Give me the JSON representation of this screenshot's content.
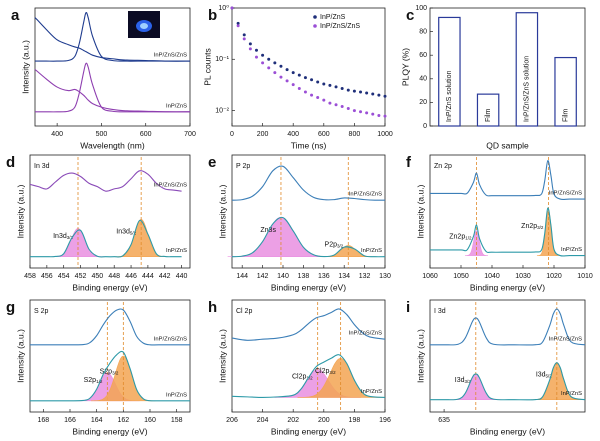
{
  "chart_data": [
    {
      "type": "line",
      "label": "a",
      "xlabel": "Wavelength (nm)",
      "ylabel": "Intensity (a.u.)",
      "xlim": [
        350,
        700
      ],
      "xticks": [
        400,
        500,
        600,
        700
      ],
      "ylim": [
        0,
        10
      ],
      "x": [
        350,
        375,
        400,
        425,
        440,
        450,
        460,
        465,
        470,
        480,
        500,
        525,
        550,
        600,
        650,
        700
      ],
      "series": [
        {
          "name": "InP/ZnS/ZnS",
          "color": "#1f3c8f",
          "absorption": [
            9.2,
            8.2,
            7.3,
            6.9,
            6.7,
            6.6,
            6.4,
            6.3,
            6.2,
            6.0,
            5.8,
            5.7,
            5.6,
            5.55,
            5.5,
            5.5
          ],
          "emission": [
            5.5,
            5.5,
            5.5,
            5.55,
            5.9,
            7.0,
            8.8,
            9.6,
            9.2,
            7.6,
            5.9,
            5.55,
            5.5,
            5.5,
            5.5,
            5.5
          ]
        },
        {
          "name": "InP/ZnS",
          "color": "#8e3fb0",
          "absorption": [
            4.8,
            4.0,
            3.3,
            3.0,
            3.1,
            2.9,
            2.6,
            2.4,
            2.2,
            1.9,
            1.6,
            1.4,
            1.3,
            1.25,
            1.2,
            1.2
          ],
          "emission": [
            1.2,
            1.2,
            1.2,
            1.25,
            1.6,
            2.8,
            4.6,
            5.3,
            5.0,
            3.5,
            1.6,
            1.25,
            1.2,
            1.2,
            1.2,
            1.2
          ]
        }
      ]
    },
    {
      "type": "scatter",
      "label": "b",
      "xlabel": "Time (ns)",
      "ylabel": "PL counts",
      "log": true,
      "xlim": [
        0,
        1000
      ],
      "xticks": [
        0,
        200,
        400,
        600,
        800,
        1000
      ],
      "ylim": [
        0.005,
        1
      ],
      "yticks": [
        {
          "value": 0.01,
          "label": "10⁻²"
        },
        {
          "value": 0.1,
          "label": "10⁻¹"
        },
        {
          "value": 1,
          "label": "10⁰"
        }
      ],
      "legend": "upper right",
      "x": [
        0,
        40,
        80,
        120,
        160,
        200,
        240,
        280,
        320,
        360,
        400,
        440,
        480,
        520,
        560,
        600,
        640,
        680,
        720,
        760,
        800,
        840,
        880,
        920,
        960,
        1000
      ],
      "series": [
        {
          "name": "InP/ZnS",
          "color": "#1f2f7a",
          "values": [
            1.0,
            0.5,
            0.3,
            0.2,
            0.15,
            0.12,
            0.1,
            0.085,
            0.073,
            0.063,
            0.055,
            0.049,
            0.044,
            0.04,
            0.036,
            0.033,
            0.031,
            0.029,
            0.027,
            0.025,
            0.024,
            0.023,
            0.022,
            0.021,
            0.02,
            0.019
          ]
        },
        {
          "name": "InP/ZnS/ZnS",
          "color": "#9b4fd6",
          "values": [
            1.0,
            0.45,
            0.25,
            0.16,
            0.11,
            0.085,
            0.068,
            0.055,
            0.045,
            0.038,
            0.032,
            0.027,
            0.023,
            0.02,
            0.018,
            0.016,
            0.014,
            0.013,
            0.012,
            0.011,
            0.01,
            0.0095,
            0.009,
            0.0085,
            0.008,
            0.0078
          ]
        }
      ]
    },
    {
      "type": "bar",
      "label": "c",
      "xlabel": "QD sample",
      "ylabel": "PLQY (%)",
      "categories": [
        "InP/ZnS solution",
        "Film",
        "InP/ZnS/ZnS solution",
        "Film"
      ],
      "values": [
        92,
        27,
        96,
        58
      ],
      "color": "#2a3a9a",
      "ylim": [
        0,
        100
      ],
      "yticks": [
        0,
        20,
        40,
        60,
        80,
        100
      ]
    },
    {
      "type": "spectrum",
      "label": "d",
      "subtitle": "In 3d",
      "xlabel": "Binding energy (eV)",
      "ylabel": "Intensity (a.u.)",
      "xlim": [
        458,
        439
      ],
      "xticks": [
        458,
        456,
        454,
        452,
        450,
        448,
        446,
        444,
        442,
        440
      ],
      "ylim": [
        0,
        10
      ],
      "x": [
        458,
        457,
        456,
        455,
        454,
        453,
        452,
        451,
        450,
        449,
        448,
        447,
        446,
        445,
        444,
        443,
        442,
        441,
        440
      ],
      "series": [
        {
          "name": "InP/ZnS/ZnS",
          "color": "#8a4bb8",
          "values": [
            7.4,
            7.2,
            7.0,
            7.6,
            8.2,
            8.4,
            8.1,
            7.5,
            7.2,
            6.8,
            7.0,
            7.2,
            7.9,
            8.6,
            8.3,
            7.5,
            7.0,
            6.9,
            6.8
          ]
        },
        {
          "name": "InP/ZnS",
          "color": "#2d9aa8",
          "values": [
            1,
            1,
            1,
            1.02,
            1.26,
            2.7,
            3.33,
            1.67,
            1.04,
            1,
            1,
            1.07,
            2.07,
            4.2,
            3.0,
            1.26,
            1.02,
            1,
            1
          ]
        }
      ],
      "components": [
        {
          "name": "In3d",
          "sub": "3/2",
          "color": "#e98fe0",
          "center": 452.3,
          "peak": 3.5,
          "width": 0.8
        },
        {
          "name": "In3d",
          "sub": "5/2",
          "color": "#f3a552",
          "center": 444.8,
          "peak": 4.3,
          "width": 0.8
        }
      ]
    },
    {
      "type": "spectrum",
      "label": "e",
      "subtitle": "P 2p",
      "xlabel": "Binding energy (eV)",
      "ylabel": "Intensity (a.u.)",
      "xlim": [
        145,
        130
      ],
      "xticks": [
        144,
        142,
        140,
        138,
        136,
        134,
        132,
        130
      ],
      "ylim": [
        0,
        10
      ],
      "x": [
        145,
        144,
        143,
        142,
        141,
        140,
        139,
        138,
        137,
        136,
        135,
        134,
        133,
        132,
        131,
        130
      ],
      "series": [
        {
          "name": "InP/ZnS/ZnS",
          "color": "#3c7fb8",
          "values": [
            6,
            6.05,
            6.35,
            7.2,
            8.6,
            9.0,
            8.0,
            6.9,
            6.25,
            6.05,
            6.05,
            6.2,
            6.15,
            6.05,
            6,
            6
          ]
        },
        {
          "name": "InP/ZnS",
          "color": "#2d9aa8",
          "values": [
            1,
            1.05,
            1.34,
            2.34,
            3.9,
            4.46,
            3.28,
            1.84,
            1.17,
            1.01,
            1.14,
            1.85,
            1.69,
            1.07,
            1,
            1
          ]
        }
      ],
      "components": [
        {
          "name": "Zn3s",
          "sub": "",
          "color": "#e98fe0",
          "center": 140.2,
          "peak": 4.5,
          "width": 1.3
        },
        {
          "name": "P2p",
          "sub": "3/2",
          "color": "#f3a552",
          "center": 133.6,
          "peak": 2.0,
          "width": 0.7
        }
      ]
    },
    {
      "type": "spectrum",
      "label": "f",
      "subtitle": "Zn 2p",
      "xlabel": "Binding energy (eV)",
      "ylabel": "Intensity (a.u.)",
      "xlim": [
        1060,
        1010
      ],
      "xticks": [
        1060,
        1050,
        1040,
        1030,
        1020,
        1010
      ],
      "ylim": [
        0,
        10
      ],
      "x": [
        1060,
        1055,
        1050,
        1048,
        1046,
        1045,
        1044,
        1042,
        1040,
        1035,
        1030,
        1026,
        1024,
        1023,
        1022,
        1021,
        1020,
        1018,
        1015,
        1010
      ],
      "series": [
        {
          "name": "InP/ZnS/ZnS",
          "color": "#3c7fb8",
          "values": [
            6.6,
            6.6,
            6.6,
            6.62,
            7.57,
            8.4,
            7.37,
            6.47,
            6.4,
            6.4,
            6.4,
            6.42,
            6.56,
            7.7,
            9.5,
            8.2,
            6.55,
            6.1,
            6.1,
            6.1
          ]
        },
        {
          "name": "InP/ZnS",
          "color": "#2d9aa8",
          "values": [
            1.6,
            1.6,
            1.6,
            1.62,
            2.78,
            3.8,
            2.58,
            1.49,
            1.4,
            1.4,
            1.4,
            1.42,
            1.6,
            3.04,
            5.3,
            3.8,
            1.64,
            1.1,
            1.1,
            1.1
          ]
        }
      ],
      "components": [
        {
          "name": "Zn2p",
          "sub": "1/2",
          "color": "#e98fe0",
          "center": 1045,
          "peak": 3.3,
          "width": 0.9
        },
        {
          "name": "Zn2p",
          "sub": "3/2",
          "color": "#f3a552",
          "center": 1021.8,
          "peak": 5.1,
          "width": 0.9
        }
      ]
    },
    {
      "type": "spectrum",
      "label": "g",
      "subtitle": "S 2p",
      "xlabel": "Binding energy (eV)",
      "ylabel": "Intensity (a.u.)",
      "xlim": [
        169,
        157
      ],
      "xticks": [
        168,
        166,
        164,
        162,
        160,
        158
      ],
      "ylim": [
        0,
        10
      ],
      "x": [
        169,
        168,
        167,
        166,
        165,
        164.5,
        164,
        163.5,
        163,
        162.5,
        162,
        161.5,
        161,
        160.5,
        160,
        159,
        158,
        157
      ],
      "series": [
        {
          "name": "InP/ZnS/ZnS",
          "color": "#3c7fb8",
          "values": [
            6,
            6,
            6,
            6,
            6.02,
            6.2,
            6.82,
            7.8,
            8.6,
            9.1,
            9.1,
            8.1,
            6.75,
            6.15,
            6,
            6,
            6,
            6
          ]
        },
        {
          "name": "InP/ZnS",
          "color": "#2d9aa8",
          "values": [
            1,
            1,
            1,
            1,
            1.03,
            1.24,
            2.04,
            3.38,
            4.37,
            5.11,
            5.34,
            3.89,
            2.0,
            1.18,
            1.01,
            1,
            1,
            1
          ]
        }
      ],
      "components": [
        {
          "name": "S2p",
          "sub": "1/2",
          "color": "#e98fe0",
          "center": 163.2,
          "peak": 3.5,
          "width": 0.6
        },
        {
          "name": "S2p",
          "sub": "3/2",
          "color": "#f3a552",
          "center": 162.0,
          "peak": 5.0,
          "width": 0.6
        }
      ]
    },
    {
      "type": "spectrum",
      "label": "h",
      "subtitle": "Cl 2p",
      "xlabel": "Binding energy (eV)",
      "ylabel": "Intensity (a.u.)",
      "xlim": [
        206,
        196
      ],
      "xticks": [
        206,
        204,
        202,
        200,
        198,
        196
      ],
      "ylim": [
        0,
        10
      ],
      "x": [
        206,
        205,
        204,
        203,
        202,
        201.5,
        201,
        200.5,
        200,
        199.5,
        199,
        198.5,
        198,
        197.5,
        197,
        196
      ],
      "series": [
        {
          "name": "InP/ZnS/ZnS",
          "color": "#3c7fb8",
          "values": [
            6.6,
            6.4,
            6.5,
            6.6,
            6.9,
            7.3,
            7.9,
            8.4,
            8.6,
            8.9,
            9.2,
            8.7,
            7.8,
            7.1,
            6.7,
            6.5
          ]
        },
        {
          "name": "InP/ZnS",
          "color": "#2d9aa8",
          "values": [
            1.4,
            1.35,
            1.3,
            1.35,
            1.5,
            2.03,
            3.07,
            4.04,
            4.45,
            4.81,
            5.11,
            4.34,
            2.84,
            1.77,
            1.39,
            1.3
          ]
        }
      ],
      "components": [
        {
          "name": "Cl2p",
          "sub": "1/2",
          "color": "#e98fe0",
          "center": 200.4,
          "peak": 3.8,
          "width": 0.7
        },
        {
          "name": "Cl2p",
          "sub": "3/2",
          "color": "#f3a552",
          "center": 198.9,
          "peak": 4.8,
          "width": 0.7
        }
      ]
    },
    {
      "type": "spectrum",
      "label": "i",
      "subtitle": "I 3d",
      "xlabel": "Binding energy (eV)",
      "ylabel": "Intensity (a.u.)",
      "xlim": [
        637,
        615
      ],
      "xticks": [
        635
      ],
      "ylim": [
        0,
        10
      ],
      "x": [
        637,
        635,
        633,
        632,
        631,
        630.5,
        630,
        629,
        628,
        625,
        622,
        621,
        620,
        619.5,
        619,
        618.5,
        618,
        617,
        615
      ],
      "series": [
        {
          "name": "InP/ZnS/ZnS",
          "color": "#3c7fb8",
          "values": [
            6,
            6,
            6.05,
            6.6,
            8.05,
            8.4,
            8.05,
            6.6,
            6.05,
            6,
            6.01,
            6.27,
            7.73,
            8.75,
            9.2,
            8.75,
            7.73,
            6.27,
            6
          ]
        },
        {
          "name": "InP/ZnS",
          "color": "#2d9aa8",
          "values": [
            1.1,
            1.1,
            1.15,
            1.67,
            3.07,
            3.4,
            3.07,
            1.67,
            1.15,
            1.1,
            1.11,
            1.38,
            2.88,
            3.94,
            4.4,
            3.94,
            2.88,
            1.38,
            1.1
          ]
        }
      ],
      "components": [
        {
          "name": "I3d",
          "sub": "3/2",
          "color": "#e98fe0",
          "center": 630.5,
          "peak": 3.4,
          "width": 0.9
        },
        {
          "name": "I3d",
          "sub": "5/2",
          "color": "#f3a552",
          "center": 619,
          "peak": 4.4,
          "width": 0.9
        }
      ]
    }
  ]
}
